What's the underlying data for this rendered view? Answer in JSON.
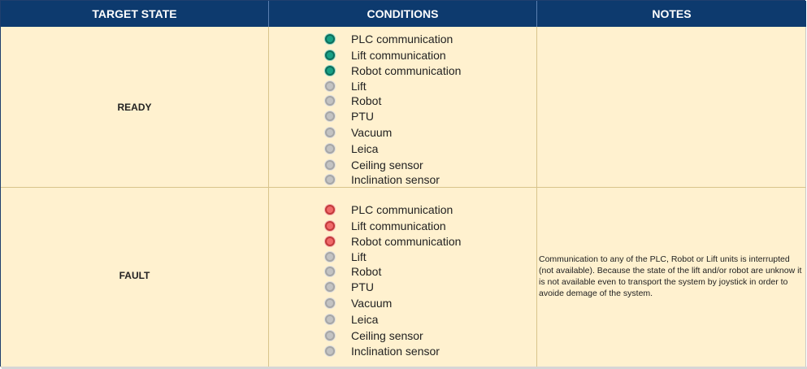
{
  "headers": {
    "target_state": "TARGET STATE",
    "conditions": "CONDITIONS",
    "notes": "NOTES"
  },
  "rows": [
    {
      "state": "READY",
      "conditions": [
        {
          "label": "PLC communication",
          "status": "green"
        },
        {
          "label": "Lift communication",
          "status": "green"
        },
        {
          "label": "Robot communication",
          "status": "green"
        },
        {
          "label": "Lift",
          "status": "gray"
        },
        {
          "label": "Robot",
          "status": "gray"
        },
        {
          "label": "PTU",
          "status": "gray"
        },
        {
          "label": "Vacuum",
          "status": "gray"
        },
        {
          "label": "Leica",
          "status": "gray"
        },
        {
          "label": "Ceiling sensor",
          "status": "gray"
        },
        {
          "label": "Inclination sensor",
          "status": "gray"
        }
      ],
      "notes": ""
    },
    {
      "state": "FAULT",
      "conditions": [
        {
          "label": "PLC communication",
          "status": "red"
        },
        {
          "label": "Lift communication",
          "status": "red"
        },
        {
          "label": "Robot communication",
          "status": "red"
        },
        {
          "label": "Lift",
          "status": "gray"
        },
        {
          "label": "Robot",
          "status": "gray"
        },
        {
          "label": "PTU",
          "status": "gray"
        },
        {
          "label": "Vacuum",
          "status": "gray"
        },
        {
          "label": "Leica",
          "status": "gray"
        },
        {
          "label": "Ceiling sensor",
          "status": "gray"
        },
        {
          "label": "Inclination sensor",
          "status": "gray"
        }
      ],
      "notes": "Communication to any of the PLC, Robot or Lift units is interrupted (not available). Because the state of the lift and/or robot are unknow it is not available even to transport the system by joystick in order to avoide demage of the system."
    }
  ],
  "colors": {
    "header_bg": "#0d3a6e",
    "cell_bg": "#fff1cf",
    "ok": "#17a085",
    "inactive": "#c3c3c3",
    "error": "#f06a6a"
  }
}
